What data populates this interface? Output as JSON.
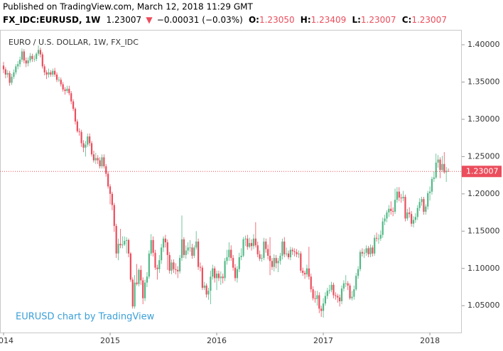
{
  "header": {
    "published": "Published on TradingView.com, March 12, 2018 11:29 GMT",
    "symbol": "FX_IDC:EURUSD, 1W",
    "last": "1.23007",
    "arrow": "▼",
    "change": "−0.00031 (−0.03%)",
    "o_label": "O:",
    "o": "1.23050",
    "h_label": "H:",
    "h": "1.23409",
    "l_label": "L:",
    "l": "1.23007",
    "c_label": "C:",
    "c": "1.23007"
  },
  "chart_data": {
    "type": "candlestick",
    "title": "EURO / U.S. DOLLAR, 1W, FX_IDC",
    "watermark": "EURUSD chart by TradingView",
    "up_color": "#53b987",
    "down_color": "#eb4d5c",
    "ylim": [
      1.014,
      1.42
    ],
    "yticks": [
      {
        "value": 1.05,
        "label": "1.05000"
      },
      {
        "value": 1.1,
        "label": "1.10000"
      },
      {
        "value": 1.15,
        "label": "1.15000"
      },
      {
        "value": 1.2,
        "label": "1.20000"
      },
      {
        "value": 1.25,
        "label": "1.25000"
      },
      {
        "value": 1.3,
        "label": "1.30000"
      },
      {
        "value": 1.35,
        "label": "1.35000"
      },
      {
        "value": 1.4,
        "label": "1.40000"
      }
    ],
    "last_price": {
      "value": 1.23007,
      "label": "1.23007"
    },
    "categories": [
      "2014",
      null,
      null,
      null,
      null,
      null,
      null,
      null,
      null,
      null,
      null,
      null,
      null,
      null,
      null,
      null,
      null,
      null,
      null,
      null,
      null,
      null,
      null,
      null,
      null,
      null,
      null,
      null,
      null,
      null,
      null,
      null,
      null,
      null,
      null,
      null,
      null,
      null,
      null,
      null,
      null,
      null,
      null,
      null,
      null,
      null,
      null,
      null,
      null,
      null,
      null,
      null,
      "2015",
      null,
      null,
      null,
      null,
      null,
      null,
      null,
      null,
      null,
      null,
      null,
      null,
      null,
      null,
      null,
      null,
      null,
      null,
      null,
      null,
      null,
      null,
      null,
      null,
      null,
      null,
      null,
      null,
      null,
      null,
      null,
      null,
      null,
      null,
      null,
      null,
      null,
      null,
      null,
      null,
      null,
      null,
      null,
      null,
      null,
      null,
      null,
      null,
      null,
      null,
      null,
      "2016",
      null,
      null,
      null,
      null,
      null,
      null,
      null,
      null,
      null,
      null,
      null,
      null,
      null,
      null,
      null,
      null,
      null,
      null,
      null,
      null,
      null,
      null,
      null,
      null,
      null,
      null,
      null,
      null,
      null,
      null,
      null,
      null,
      null,
      null,
      null,
      null,
      null,
      null,
      null,
      null,
      null,
      null,
      null,
      null,
      null,
      null,
      null,
      null,
      null,
      null,
      null,
      "2017",
      null,
      null,
      null,
      null,
      null,
      null,
      null,
      null,
      null,
      null,
      null,
      null,
      null,
      null,
      null,
      null,
      null,
      null,
      null,
      null,
      null,
      null,
      null,
      null,
      null,
      null,
      null,
      null,
      null,
      null,
      null,
      null,
      null,
      null,
      null,
      null,
      null,
      null,
      null,
      null,
      null,
      null,
      null,
      null,
      null,
      null,
      null,
      null,
      null,
      null,
      null,
      "2018",
      null,
      null,
      null,
      null,
      null,
      null,
      null,
      null,
      null
    ],
    "open": [
      1.372,
      1.367,
      1.36,
      1.362,
      1.349,
      1.357,
      1.363,
      1.371,
      1.374,
      1.38,
      1.391,
      1.379,
      1.375,
      1.379,
      1.385,
      1.381,
      1.381,
      1.388,
      1.393,
      1.387,
      1.371,
      1.363,
      1.36,
      1.363,
      1.36,
      1.365,
      1.36,
      1.353,
      1.353,
      1.347,
      1.34,
      1.338,
      1.341,
      1.335,
      1.324,
      1.314,
      1.297,
      1.284,
      1.283,
      1.268,
      1.262,
      1.266,
      1.277,
      1.268,
      1.253,
      1.245,
      1.248,
      1.245,
      1.237,
      1.249,
      1.237,
      1.227,
      1.21,
      1.2,
      1.185,
      1.157,
      1.12,
      1.133,
      1.131,
      1.132,
      1.137,
      1.138,
      1.12,
      1.085,
      1.049,
      1.081,
      1.079,
      1.098,
      1.084,
      1.06,
      1.081,
      1.089,
      1.12,
      1.138,
      1.121,
      1.101,
      1.099,
      1.111,
      1.128,
      1.14,
      1.135,
      1.118,
      1.097,
      1.108,
      1.099,
      1.098,
      1.096,
      1.114,
      1.139,
      1.118,
      1.124,
      1.128,
      1.128,
      1.117,
      1.128,
      1.136,
      1.102,
      1.101,
      1.074,
      1.077,
      1.065,
      1.07,
      1.089,
      1.1,
      1.087,
      1.093,
      1.087,
      1.089,
      1.087,
      1.11,
      1.115,
      1.125,
      1.114,
      1.101,
      1.087,
      1.099,
      1.115,
      1.117,
      1.139,
      1.14,
      1.129,
      1.134,
      1.13,
      1.14,
      1.131,
      1.119,
      1.113,
      1.114,
      1.136,
      1.126,
      1.117,
      1.11,
      1.102,
      1.114,
      1.107,
      1.11,
      1.117,
      1.136,
      1.119,
      1.12,
      1.115,
      1.125,
      1.123,
      1.122,
      1.119,
      1.12,
      1.097,
      1.094,
      1.092,
      1.1,
      1.089,
      1.072,
      1.06,
      1.059,
      1.064,
      1.046,
      1.043,
      1.053,
      1.063,
      1.07,
      1.071,
      1.078,
      1.064,
      1.063,
      1.061,
      1.056,
      1.073,
      1.08,
      1.08,
      1.077,
      1.06,
      1.062,
      1.072,
      1.09,
      1.099,
      1.122,
      1.12,
      1.121,
      1.127,
      1.119,
      1.128,
      1.12,
      1.141,
      1.14,
      1.14,
      1.145,
      1.163,
      1.167,
      1.175,
      1.18,
      1.177,
      1.176,
      1.192,
      1.203,
      1.195,
      1.194,
      1.196,
      1.167,
      1.175,
      1.173,
      1.16,
      1.165,
      1.169,
      1.181,
      1.189,
      1.193,
      1.176,
      1.183,
      1.201,
      1.203,
      1.22,
      1.222,
      1.242,
      1.246,
      1.232,
      1.24,
      1.229,
      1.2305
    ],
    "high": [
      1.377,
      1.37,
      1.366,
      1.365,
      1.361,
      1.367,
      1.374,
      1.378,
      1.384,
      1.395,
      1.394,
      1.383,
      1.383,
      1.389,
      1.388,
      1.386,
      1.39,
      1.399,
      1.396,
      1.39,
      1.374,
      1.366,
      1.368,
      1.366,
      1.368,
      1.369,
      1.363,
      1.357,
      1.356,
      1.35,
      1.343,
      1.345,
      1.345,
      1.338,
      1.327,
      1.316,
      1.3,
      1.288,
      1.286,
      1.272,
      1.271,
      1.281,
      1.281,
      1.271,
      1.258,
      1.255,
      1.252,
      1.249,
      1.253,
      1.253,
      1.24,
      1.23,
      1.213,
      1.203,
      1.188,
      1.16,
      1.14,
      1.153,
      1.143,
      1.143,
      1.142,
      1.14,
      1.122,
      1.088,
      1.091,
      1.106,
      1.1,
      1.104,
      1.088,
      1.085,
      1.095,
      1.124,
      1.146,
      1.143,
      1.125,
      1.105,
      1.118,
      1.133,
      1.143,
      1.145,
      1.139,
      1.122,
      1.112,
      1.112,
      1.107,
      1.103,
      1.118,
      1.171,
      1.142,
      1.131,
      1.135,
      1.138,
      1.133,
      1.131,
      1.15,
      1.14,
      1.108,
      1.104,
      1.082,
      1.08,
      1.074,
      1.097,
      1.105,
      1.103,
      1.097,
      1.097,
      1.096,
      1.093,
      1.114,
      1.125,
      1.135,
      1.131,
      1.118,
      1.106,
      1.103,
      1.121,
      1.127,
      1.142,
      1.144,
      1.145,
      1.141,
      1.139,
      1.146,
      1.162,
      1.136,
      1.124,
      1.119,
      1.141,
      1.14,
      1.132,
      1.142,
      1.114,
      1.119,
      1.118,
      1.114,
      1.121,
      1.14,
      1.142,
      1.128,
      1.124,
      1.129,
      1.128,
      1.127,
      1.126,
      1.124,
      1.123,
      1.101,
      1.097,
      1.105,
      1.129,
      1.093,
      1.076,
      1.07,
      1.07,
      1.068,
      1.05,
      1.06,
      1.068,
      1.074,
      1.078,
      1.082,
      1.081,
      1.068,
      1.066,
      1.065,
      1.077,
      1.084,
      1.091,
      1.083,
      1.08,
      1.07,
      1.077,
      1.094,
      1.103,
      1.125,
      1.127,
      1.126,
      1.131,
      1.13,
      1.132,
      1.131,
      1.145,
      1.148,
      1.146,
      1.151,
      1.168,
      1.172,
      1.178,
      1.185,
      1.19,
      1.182,
      1.207,
      1.209,
      1.209,
      1.2,
      1.204,
      1.199,
      1.18,
      1.182,
      1.177,
      1.17,
      1.174,
      1.185,
      1.194,
      1.196,
      1.196,
      1.186,
      1.204,
      1.21,
      1.223,
      1.23,
      1.254,
      1.252,
      1.249,
      1.251,
      1.256,
      1.236,
      1.23409
    ],
    "low": [
      1.362,
      1.355,
      1.356,
      1.345,
      1.346,
      1.354,
      1.36,
      1.367,
      1.37,
      1.377,
      1.375,
      1.37,
      1.371,
      1.376,
      1.377,
      1.377,
      1.378,
      1.385,
      1.383,
      1.368,
      1.359,
      1.354,
      1.356,
      1.357,
      1.357,
      1.357,
      1.35,
      1.35,
      1.344,
      1.337,
      1.333,
      1.335,
      1.332,
      1.32,
      1.311,
      1.293,
      1.282,
      1.278,
      1.263,
      1.256,
      1.25,
      1.263,
      1.264,
      1.25,
      1.242,
      1.24,
      1.24,
      1.234,
      1.234,
      1.234,
      1.223,
      1.207,
      1.186,
      1.178,
      1.149,
      1.114,
      1.111,
      1.127,
      1.127,
      1.13,
      1.12,
      1.115,
      1.082,
      1.046,
      1.046,
      1.077,
      1.076,
      1.078,
      1.052,
      1.056,
      1.075,
      1.086,
      1.117,
      1.116,
      1.098,
      1.085,
      1.094,
      1.106,
      1.122,
      1.128,
      1.098,
      1.093,
      1.092,
      1.094,
      1.092,
      1.087,
      1.093,
      1.11,
      1.114,
      1.113,
      1.119,
      1.122,
      1.113,
      1.114,
      1.125,
      1.098,
      1.096,
      1.071,
      1.071,
      1.061,
      1.058,
      1.052,
      1.085,
      1.081,
      1.071,
      1.083,
      1.078,
      1.08,
      1.083,
      1.105,
      1.11,
      1.11,
      1.097,
      1.083,
      1.081,
      1.095,
      1.111,
      1.115,
      1.13,
      1.125,
      1.127,
      1.124,
      1.126,
      1.128,
      1.115,
      1.11,
      1.109,
      1.111,
      1.121,
      1.112,
      1.091,
      1.098,
      1.096,
      1.1,
      1.095,
      1.105,
      1.112,
      1.115,
      1.116,
      1.112,
      1.111,
      1.118,
      1.116,
      1.115,
      1.114,
      1.094,
      1.09,
      1.086,
      1.088,
      1.085,
      1.068,
      1.057,
      1.054,
      1.05,
      1.04,
      1.035,
      1.034,
      1.05,
      1.059,
      1.066,
      1.068,
      1.06,
      1.058,
      1.054,
      1.049,
      1.052,
      1.069,
      1.075,
      1.071,
      1.058,
      1.057,
      1.058,
      1.07,
      1.086,
      1.096,
      1.116,
      1.114,
      1.117,
      1.115,
      1.115,
      1.116,
      1.117,
      1.136,
      1.133,
      1.137,
      1.141,
      1.158,
      1.162,
      1.169,
      1.172,
      1.17,
      1.173,
      1.188,
      1.19,
      1.188,
      1.19,
      1.163,
      1.164,
      1.168,
      1.156,
      1.155,
      1.161,
      1.165,
      1.177,
      1.184,
      1.172,
      1.172,
      1.179,
      1.191,
      1.199,
      1.216,
      1.22,
      1.235,
      1.221,
      1.229,
      1.227,
      1.216,
      1.23007
    ],
    "close": [
      1.367,
      1.36,
      1.362,
      1.349,
      1.357,
      1.363,
      1.371,
      1.374,
      1.38,
      1.391,
      1.379,
      1.375,
      1.379,
      1.385,
      1.381,
      1.381,
      1.388,
      1.393,
      1.387,
      1.371,
      1.363,
      1.36,
      1.363,
      1.36,
      1.365,
      1.36,
      1.353,
      1.353,
      1.347,
      1.34,
      1.338,
      1.341,
      1.335,
      1.324,
      1.314,
      1.297,
      1.284,
      1.283,
      1.268,
      1.262,
      1.266,
      1.277,
      1.268,
      1.253,
      1.245,
      1.248,
      1.245,
      1.237,
      1.249,
      1.237,
      1.227,
      1.21,
      1.2,
      1.185,
      1.157,
      1.12,
      1.133,
      1.131,
      1.132,
      1.137,
      1.138,
      1.12,
      1.085,
      1.049,
      1.081,
      1.079,
      1.098,
      1.084,
      1.06,
      1.081,
      1.089,
      1.12,
      1.138,
      1.121,
      1.101,
      1.099,
      1.111,
      1.128,
      1.14,
      1.135,
      1.118,
      1.097,
      1.108,
      1.099,
      1.098,
      1.096,
      1.114,
      1.139,
      1.118,
      1.124,
      1.128,
      1.128,
      1.117,
      1.128,
      1.136,
      1.102,
      1.101,
      1.074,
      1.077,
      1.065,
      1.07,
      1.089,
      1.1,
      1.087,
      1.093,
      1.087,
      1.089,
      1.087,
      1.11,
      1.115,
      1.125,
      1.114,
      1.101,
      1.087,
      1.099,
      1.115,
      1.117,
      1.139,
      1.14,
      1.129,
      1.134,
      1.13,
      1.14,
      1.131,
      1.119,
      1.113,
      1.114,
      1.136,
      1.126,
      1.117,
      1.11,
      1.102,
      1.114,
      1.107,
      1.11,
      1.117,
      1.136,
      1.119,
      1.12,
      1.115,
      1.125,
      1.123,
      1.122,
      1.119,
      1.12,
      1.097,
      1.094,
      1.092,
      1.1,
      1.089,
      1.072,
      1.06,
      1.059,
      1.064,
      1.046,
      1.043,
      1.053,
      1.063,
      1.07,
      1.071,
      1.078,
      1.064,
      1.063,
      1.061,
      1.056,
      1.073,
      1.08,
      1.08,
      1.077,
      1.06,
      1.062,
      1.072,
      1.09,
      1.099,
      1.122,
      1.12,
      1.121,
      1.127,
      1.119,
      1.128,
      1.12,
      1.141,
      1.14,
      1.14,
      1.145,
      1.163,
      1.167,
      1.175,
      1.18,
      1.177,
      1.176,
      1.192,
      1.203,
      1.195,
      1.194,
      1.196,
      1.167,
      1.175,
      1.173,
      1.16,
      1.165,
      1.169,
      1.181,
      1.189,
      1.193,
      1.176,
      1.183,
      1.201,
      1.203,
      1.22,
      1.222,
      1.242,
      1.246,
      1.232,
      1.24,
      1.229,
      1.231,
      1.23007
    ]
  }
}
